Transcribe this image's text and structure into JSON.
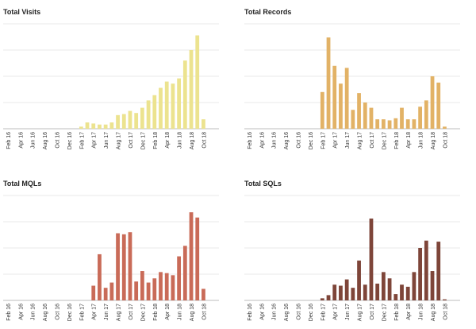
{
  "chart_data": [
    {
      "type": "bar",
      "title": "Total Visits",
      "color": "#ece38f",
      "ylim": [
        0,
        100
      ],
      "grid": true,
      "categories": [
        "Feb 16",
        "Mar 16",
        "Apr 16",
        "May 16",
        "Jun 16",
        "Jul 16",
        "Aug 16",
        "Sep 16",
        "Oct 16",
        "Nov 16",
        "Dec 16",
        "Jan 17",
        "Feb 17",
        "Mar 17",
        "Apr 17",
        "May 17",
        "Jun 17",
        "Jul 17",
        "Aug 17",
        "Sep 17",
        "Oct 17",
        "Nov 17",
        "Dec 17",
        "Jan 18",
        "Feb 18",
        "Mar 18",
        "Apr 18",
        "May 18",
        "Jun 18",
        "Jul 18",
        "Aug 18",
        "Sep 18",
        "Oct 18",
        "Nov 18"
      ],
      "tick_labels": [
        "Feb 16",
        "Apr 16",
        "Jun 16",
        "Aug 16",
        "Oct 16",
        "Dec 16",
        "Feb 17",
        "Apr 17",
        "Jun 17",
        "Aug 17",
        "Oct 17",
        "Dec 17",
        "Feb 18",
        "Apr 18",
        "Jun 18",
        "Aug 18",
        "Oct 18"
      ],
      "values": [
        0,
        0,
        0,
        0,
        0,
        0,
        0,
        0,
        0,
        0,
        0,
        0,
        2,
        6,
        5,
        4,
        4,
        6,
        13,
        14,
        17,
        15,
        20,
        27,
        32,
        39,
        45,
        43,
        48,
        65,
        75,
        89,
        9,
        0
      ]
    },
    {
      "type": "bar",
      "title": "Total Records",
      "color": "#e2b266",
      "ylim": [
        0,
        100
      ],
      "grid": true,
      "categories": [
        "Feb 16",
        "Mar 16",
        "Apr 16",
        "May 16",
        "Jun 16",
        "Jul 16",
        "Aug 16",
        "Sep 16",
        "Oct 16",
        "Nov 16",
        "Dec 16",
        "Jan 17",
        "Feb 17",
        "Mar 17",
        "Apr 17",
        "May 17",
        "Jun 17",
        "Jul 17",
        "Aug 17",
        "Sep 17",
        "Oct 17",
        "Nov 17",
        "Dec 17",
        "Jan 18",
        "Feb 18",
        "Mar 18",
        "Apr 18",
        "May 18",
        "Jun 18",
        "Jul 18",
        "Aug 18",
        "Sep 18",
        "Oct 18",
        "Nov 18"
      ],
      "tick_labels": [
        "Feb 16",
        "Apr 16",
        "Jun 16",
        "Aug 16",
        "Oct 16",
        "Dec 16",
        "Feb 17",
        "Apr 17",
        "Jun 17",
        "Aug 17",
        "Oct 17",
        "Dec 17",
        "Feb 18",
        "Apr 18",
        "Jun 18",
        "Aug 18",
        "Oct 18"
      ],
      "values": [
        0,
        0,
        0,
        0,
        0,
        0,
        0,
        0,
        0,
        0,
        0,
        0,
        35,
        87,
        60,
        43,
        58,
        18,
        34,
        25,
        20,
        9,
        9,
        8,
        10,
        20,
        9,
        9,
        21,
        27,
        50,
        44,
        2,
        0
      ]
    },
    {
      "type": "bar",
      "title": "Total MQLs",
      "color": "#c96b58",
      "ylim": [
        0,
        100
      ],
      "grid": true,
      "categories": [
        "Feb 16",
        "Mar 16",
        "Apr 16",
        "May 16",
        "Jun 16",
        "Jul 16",
        "Aug 16",
        "Sep 16",
        "Oct 16",
        "Nov 16",
        "Dec 16",
        "Jan 17",
        "Feb 17",
        "Mar 17",
        "Apr 17",
        "May 17",
        "Jun 17",
        "Jul 17",
        "Aug 17",
        "Sep 17",
        "Oct 17",
        "Nov 17",
        "Dec 17",
        "Jan 18",
        "Feb 18",
        "Mar 18",
        "Apr 18",
        "May 18",
        "Jun 18",
        "Jul 18",
        "Aug 18",
        "Sep 18",
        "Oct 18",
        "Nov 18"
      ],
      "tick_labels": [
        "Feb 16",
        "Apr 16",
        "Jun 16",
        "Aug 16",
        "Oct 16",
        "Dec 16",
        "Feb 17",
        "Apr 17",
        "Jun 17",
        "Aug 17",
        "Oct 17",
        "Dec 17",
        "Feb 18",
        "Apr 18",
        "Jun 18",
        "Aug 18",
        "Oct 18"
      ],
      "values": [
        0,
        0,
        0,
        0,
        0,
        0,
        0,
        0,
        0,
        0,
        0,
        0,
        0,
        0,
        14,
        44,
        12,
        17,
        64,
        63,
        65,
        18,
        28,
        17,
        21,
        27,
        26,
        24,
        42,
        52,
        84,
        79,
        11,
        0
      ]
    },
    {
      "type": "bar",
      "title": "Total SQLs",
      "color": "#7e4539",
      "ylim": [
        0,
        100
      ],
      "grid": true,
      "categories": [
        "Feb 16",
        "Mar 16",
        "Apr 16",
        "May 16",
        "Jun 16",
        "Jul 16",
        "Aug 16",
        "Sep 16",
        "Oct 16",
        "Nov 16",
        "Dec 16",
        "Jan 17",
        "Feb 17",
        "Mar 17",
        "Apr 17",
        "May 17",
        "Jun 17",
        "Jul 17",
        "Aug 17",
        "Sep 17",
        "Oct 17",
        "Nov 17",
        "Dec 17",
        "Jan 18",
        "Feb 18",
        "Mar 18",
        "Apr 18",
        "May 18",
        "Jun 18",
        "Jul 18",
        "Aug 18",
        "Sep 18",
        "Oct 18",
        "Nov 18"
      ],
      "tick_labels": [
        "Feb 16",
        "Apr 16",
        "Jun 16",
        "Aug 16",
        "Oct 16",
        "Dec 16",
        "Feb 17",
        "Apr 17",
        "Jun 17",
        "Aug 17",
        "Oct 17",
        "Dec 17",
        "Feb 18",
        "Apr 18",
        "Jun 18",
        "Aug 18",
        "Oct 18"
      ],
      "values": [
        0,
        0,
        0,
        0,
        0,
        0,
        0,
        0,
        0,
        0,
        0,
        0,
        2,
        5,
        15,
        14,
        20,
        12,
        38,
        15,
        78,
        16,
        27,
        21,
        6,
        15,
        13,
        27,
        50,
        57,
        28,
        56,
        1,
        0
      ]
    }
  ]
}
